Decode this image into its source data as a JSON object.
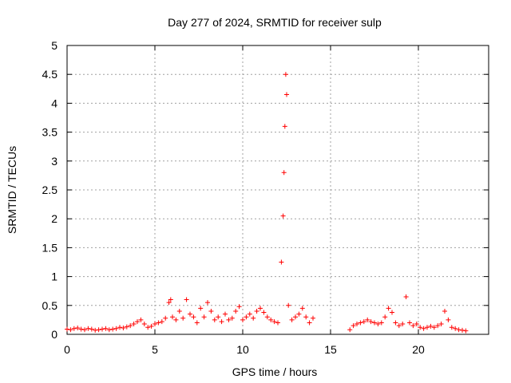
{
  "chart_data": {
    "type": "scatter",
    "title": "Day 277 of 2024, SRMTID for receiver sulp",
    "xlabel": "GPS time / hours",
    "ylabel": "SRMTID / TECUs",
    "xlim": [
      0,
      24
    ],
    "ylim": [
      0,
      5
    ],
    "xticks": [
      0,
      5,
      10,
      15,
      20
    ],
    "yticks": [
      0,
      0.5,
      1,
      1.5,
      2,
      2.5,
      3,
      3.5,
      4,
      4.5,
      5
    ],
    "xtick_labels": [
      "0",
      "5",
      "10",
      "15",
      "20"
    ],
    "ytick_labels": [
      "0",
      "0.5",
      "1",
      "1.5",
      "2",
      "2.5",
      "3",
      "3.5",
      "4",
      "4.5",
      "5"
    ],
    "grid": true,
    "marker": "+",
    "marker_color": "#ff0000",
    "series": [
      {
        "name": "SRMTID",
        "x": [
          0.0,
          0.2,
          0.4,
          0.6,
          0.8,
          1.0,
          1.2,
          1.4,
          1.6,
          1.8,
          2.0,
          2.2,
          2.4,
          2.6,
          2.8,
          3.0,
          3.2,
          3.4,
          3.6,
          3.8,
          4.0,
          4.2,
          4.4,
          4.6,
          4.8,
          5.0,
          5.2,
          5.4,
          5.6,
          5.8,
          5.9,
          6.0,
          6.2,
          6.4,
          6.6,
          6.8,
          7.0,
          7.2,
          7.4,
          7.6,
          7.8,
          8.0,
          8.2,
          8.4,
          8.6,
          8.8,
          9.0,
          9.2,
          9.4,
          9.6,
          9.8,
          10.0,
          10.2,
          10.4,
          10.6,
          10.8,
          11.0,
          11.2,
          11.4,
          11.6,
          11.8,
          12.0,
          12.2,
          12.3,
          12.35,
          12.4,
          12.45,
          12.5,
          12.6,
          12.8,
          13.0,
          13.2,
          13.4,
          13.6,
          13.8,
          14.0,
          16.1,
          16.3,
          16.5,
          16.7,
          16.9,
          17.1,
          17.3,
          17.5,
          17.7,
          17.9,
          18.1,
          18.3,
          18.5,
          18.7,
          18.9,
          19.1,
          19.3,
          19.5,
          19.7,
          19.9,
          20.1,
          20.3,
          20.5,
          20.7,
          20.9,
          21.1,
          21.3,
          21.5,
          21.7,
          21.9,
          22.1,
          22.3,
          22.5,
          22.7
        ],
        "y": [
          0.09,
          0.08,
          0.1,
          0.11,
          0.09,
          0.08,
          0.1,
          0.09,
          0.07,
          0.08,
          0.09,
          0.1,
          0.08,
          0.09,
          0.1,
          0.12,
          0.11,
          0.13,
          0.15,
          0.18,
          0.22,
          0.25,
          0.18,
          0.12,
          0.14,
          0.18,
          0.2,
          0.22,
          0.28,
          0.55,
          0.6,
          0.3,
          0.25,
          0.4,
          0.28,
          0.6,
          0.35,
          0.3,
          0.2,
          0.45,
          0.3,
          0.55,
          0.4,
          0.25,
          0.3,
          0.22,
          0.35,
          0.25,
          0.28,
          0.4,
          0.48,
          0.25,
          0.3,
          0.35,
          0.28,
          0.4,
          0.45,
          0.38,
          0.3,
          0.25,
          0.22,
          0.2,
          1.25,
          2.05,
          2.8,
          3.6,
          4.5,
          4.15,
          0.5,
          0.25,
          0.3,
          0.35,
          0.45,
          0.3,
          0.2,
          0.28,
          0.08,
          0.15,
          0.18,
          0.2,
          0.22,
          0.25,
          0.22,
          0.2,
          0.18,
          0.2,
          0.3,
          0.45,
          0.38,
          0.2,
          0.15,
          0.18,
          0.65,
          0.2,
          0.15,
          0.18,
          0.12,
          0.1,
          0.12,
          0.14,
          0.12,
          0.15,
          0.18,
          0.4,
          0.25,
          0.12,
          0.1,
          0.08,
          0.07,
          0.06
        ]
      }
    ]
  }
}
